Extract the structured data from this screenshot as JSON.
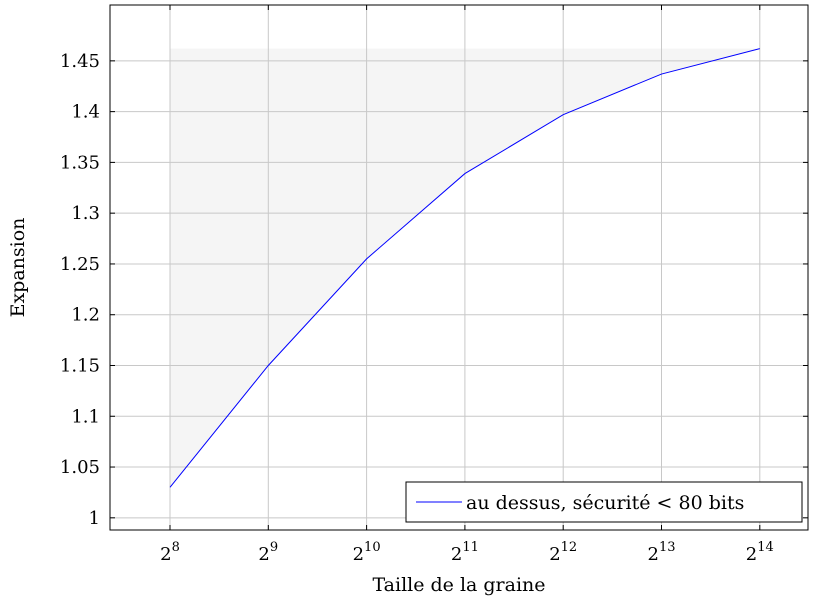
{
  "chart_data": {
    "type": "line",
    "title": "",
    "xlabel": "Taille de la graine",
    "ylabel": "Expansion",
    "x_scale": "log2",
    "x": [
      256,
      512,
      1024,
      2048,
      4096,
      8192,
      16384
    ],
    "x_tick_base": "2",
    "x_tick_exponents": [
      "8",
      "9",
      "10",
      "11",
      "12",
      "13",
      "14"
    ],
    "y_ticks": [
      1,
      1.05,
      1.1,
      1.15,
      1.2,
      1.25,
      1.3,
      1.35,
      1.4,
      1.45
    ],
    "y_tick_labels": [
      "1",
      "1.05",
      "1.1",
      "1.15",
      "1.2",
      "1.25",
      "1.3",
      "1.35",
      "1.4",
      "1.45"
    ],
    "ylim": [
      0.988,
      1.505
    ],
    "grid": true,
    "shaded_region": {
      "description_color": "#f5f5f5",
      "y_top": 1.462
    },
    "series": [
      {
        "name": "au dessus, sécurité < 80 bits",
        "color": "#0000ff",
        "values": [
          1.03,
          1.15,
          1.255,
          1.339,
          1.397,
          1.437,
          1.462
        ]
      }
    ],
    "legend_placement": "bottom-right"
  }
}
